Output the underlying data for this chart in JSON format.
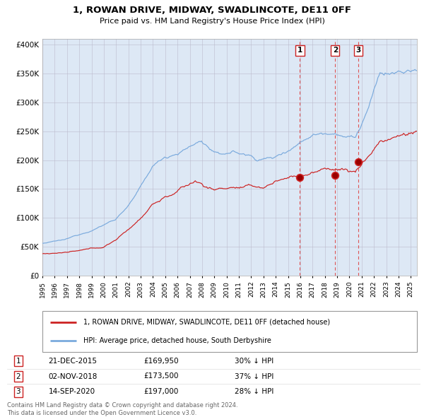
{
  "title": "1, ROWAN DRIVE, MIDWAY, SWADLINCOTE, DE11 0FF",
  "subtitle": "Price paid vs. HM Land Registry's House Price Index (HPI)",
  "legend_line1": "1, ROWAN DRIVE, MIDWAY, SWADLINCOTE, DE11 0FF (detached house)",
  "legend_line2": "HPI: Average price, detached house, South Derbyshire",
  "footer1": "Contains HM Land Registry data © Crown copyright and database right 2024.",
  "footer2": "This data is licensed under the Open Government Licence v3.0.",
  "transactions": [
    {
      "num": 1,
      "date": "21-DEC-2015",
      "price": "£169,950",
      "hpi_diff": "30% ↓ HPI",
      "x_year": 2015.97,
      "y_val": 169950
    },
    {
      "num": 2,
      "date": "02-NOV-2018",
      "price": "£173,500",
      "hpi_diff": "37% ↓ HPI",
      "x_year": 2018.84,
      "y_val": 173500
    },
    {
      "num": 3,
      "date": "14-SEP-2020",
      "price": "£197,000",
      "hpi_diff": "28% ↓ HPI",
      "x_year": 2020.71,
      "y_val": 197000
    }
  ],
  "hpi_color": "#7aaadd",
  "price_color": "#cc2222",
  "vline_color": "#dd4444",
  "background_color": "#dde8f5",
  "grid_color": "#bbbbcc",
  "ylim": [
    0,
    410000
  ],
  "xlim_start": 1995.0,
  "xlim_end": 2025.5,
  "yticks": [
    0,
    50000,
    100000,
    150000,
    200000,
    250000,
    300000,
    350000,
    400000
  ],
  "ytick_labels": [
    "£0",
    "£50K",
    "£100K",
    "£150K",
    "£200K",
    "£250K",
    "£300K",
    "£350K",
    "£400K"
  ],
  "xtick_years": [
    1995,
    1996,
    1997,
    1998,
    1999,
    2000,
    2001,
    2002,
    2003,
    2004,
    2005,
    2006,
    2007,
    2008,
    2009,
    2010,
    2011,
    2012,
    2013,
    2014,
    2015,
    2016,
    2017,
    2018,
    2019,
    2020,
    2021,
    2022,
    2023,
    2024,
    2025
  ]
}
